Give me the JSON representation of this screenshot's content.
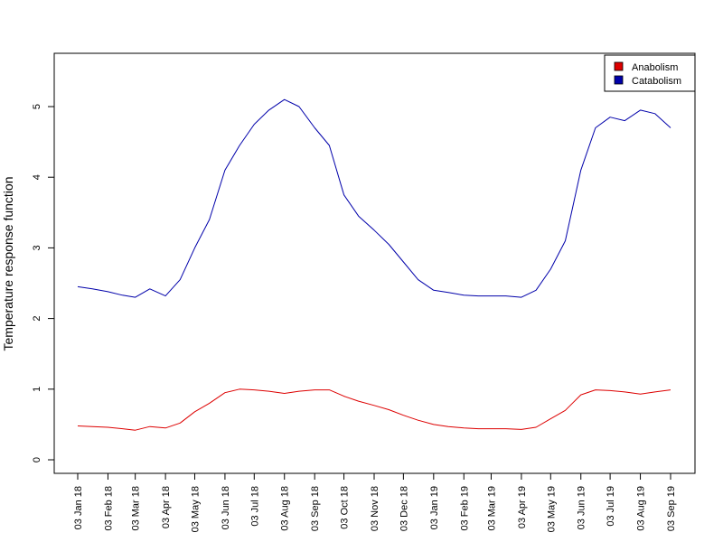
{
  "chart_data": {
    "type": "line",
    "title": "",
    "xlabel": "",
    "ylabel": "Temperature response function",
    "ylim": [
      0,
      5
    ],
    "xlim": [
      "2018-01-03",
      "2019-09-03"
    ],
    "grid": false,
    "legend_position": "top-right",
    "y_ticks": [
      0,
      1,
      2,
      3,
      4,
      5
    ],
    "x_ticks": [
      {
        "date": "2018-01-03",
        "label": "03 Jan 18"
      },
      {
        "date": "2018-02-03",
        "label": "03 Feb 18"
      },
      {
        "date": "2018-03-03",
        "label": "03 Mar 18"
      },
      {
        "date": "2018-04-03",
        "label": "03 Apr 18"
      },
      {
        "date": "2018-05-03",
        "label": "03 May 18"
      },
      {
        "date": "2018-06-03",
        "label": "03 Jun 18"
      },
      {
        "date": "2018-07-03",
        "label": "03 Jul 18"
      },
      {
        "date": "2018-08-03",
        "label": "03 Aug 18"
      },
      {
        "date": "2018-09-03",
        "label": "03 Sep 18"
      },
      {
        "date": "2018-10-03",
        "label": "03 Oct 18"
      },
      {
        "date": "2018-11-03",
        "label": "03 Nov 18"
      },
      {
        "date": "2018-12-03",
        "label": "03 Dec 18"
      },
      {
        "date": "2019-01-03",
        "label": "03 Jan 19"
      },
      {
        "date": "2019-02-03",
        "label": "03 Feb 19"
      },
      {
        "date": "2019-03-03",
        "label": "03 Mar 19"
      },
      {
        "date": "2019-04-03",
        "label": "03 Apr 19"
      },
      {
        "date": "2019-05-03",
        "label": "03 May 19"
      },
      {
        "date": "2019-06-03",
        "label": "03 Jun 19"
      },
      {
        "date": "2019-07-03",
        "label": "03 Jul 19"
      },
      {
        "date": "2019-08-03",
        "label": "03 Aug 19"
      },
      {
        "date": "2019-09-03",
        "label": "03 Sep 19"
      }
    ],
    "series": [
      {
        "name": "Anabolism",
        "color": "#dd0000",
        "x": [
          "2018-01-03",
          "2018-01-18",
          "2018-02-03",
          "2018-02-18",
          "2018-03-03",
          "2018-03-18",
          "2018-04-03",
          "2018-04-18",
          "2018-05-03",
          "2018-05-18",
          "2018-06-03",
          "2018-06-18",
          "2018-07-03",
          "2018-07-18",
          "2018-08-03",
          "2018-08-18",
          "2018-09-03",
          "2018-09-18",
          "2018-10-03",
          "2018-10-18",
          "2018-11-03",
          "2018-11-18",
          "2018-12-03",
          "2018-12-18",
          "2019-01-03",
          "2019-01-18",
          "2019-02-03",
          "2019-02-18",
          "2019-03-03",
          "2019-03-18",
          "2019-04-03",
          "2019-04-18",
          "2019-05-03",
          "2019-05-18",
          "2019-06-03",
          "2019-06-18",
          "2019-07-03",
          "2019-07-18",
          "2019-08-03",
          "2019-08-18",
          "2019-09-03"
        ],
        "values": [
          0.48,
          0.47,
          0.46,
          0.44,
          0.42,
          0.47,
          0.45,
          0.52,
          0.68,
          0.8,
          0.95,
          1.0,
          0.99,
          0.97,
          0.94,
          0.97,
          0.99,
          0.99,
          0.9,
          0.83,
          0.77,
          0.71,
          0.63,
          0.56,
          0.5,
          0.47,
          0.45,
          0.44,
          0.44,
          0.44,
          0.43,
          0.46,
          0.58,
          0.7,
          0.92,
          0.99,
          0.98,
          0.96,
          0.93,
          0.96,
          0.99
        ]
      },
      {
        "name": "Catabolism",
        "color": "#0000aa",
        "x": [
          "2018-01-03",
          "2018-01-18",
          "2018-02-03",
          "2018-02-18",
          "2018-03-03",
          "2018-03-18",
          "2018-04-03",
          "2018-04-18",
          "2018-05-03",
          "2018-05-18",
          "2018-06-03",
          "2018-06-18",
          "2018-07-03",
          "2018-07-18",
          "2018-08-03",
          "2018-08-18",
          "2018-09-03",
          "2018-09-18",
          "2018-10-03",
          "2018-10-18",
          "2018-11-03",
          "2018-11-18",
          "2018-12-03",
          "2018-12-18",
          "2019-01-03",
          "2019-01-18",
          "2019-02-03",
          "2019-02-18",
          "2019-03-03",
          "2019-03-18",
          "2019-04-03",
          "2019-04-18",
          "2019-05-03",
          "2019-05-18",
          "2019-06-03",
          "2019-06-18",
          "2019-07-03",
          "2019-07-18",
          "2019-08-03",
          "2019-08-18",
          "2019-09-03"
        ],
        "values": [
          2.45,
          2.42,
          2.38,
          2.33,
          2.3,
          2.42,
          2.32,
          2.55,
          3.0,
          3.4,
          4.1,
          4.45,
          4.75,
          4.95,
          5.1,
          5.0,
          4.7,
          4.45,
          3.75,
          3.45,
          3.25,
          3.05,
          2.8,
          2.55,
          2.4,
          2.37,
          2.33,
          2.32,
          2.32,
          2.32,
          2.3,
          2.4,
          2.7,
          3.1,
          4.1,
          4.7,
          4.85,
          4.8,
          4.95,
          4.9,
          4.7
        ]
      }
    ]
  }
}
